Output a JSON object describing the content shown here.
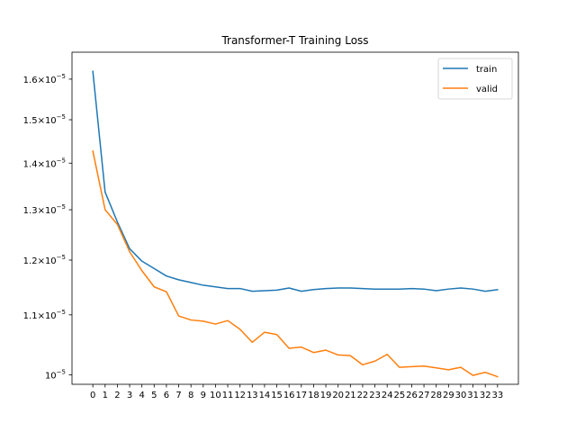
{
  "chart_data": {
    "type": "line",
    "title": "Transformer-T Training Loss",
    "xlabel": "",
    "ylabel": "",
    "yscale": "log",
    "ylim": [
      9.85e-06,
      1.67e-05
    ],
    "xlim": [
      -1.7,
      34.7
    ],
    "grid": false,
    "legend_position": "top-right",
    "x": [
      0,
      1,
      2,
      3,
      4,
      5,
      6,
      7,
      8,
      9,
      10,
      11,
      12,
      13,
      14,
      15,
      16,
      17,
      18,
      19,
      20,
      21,
      22,
      23,
      24,
      25,
      26,
      27,
      28,
      29,
      30,
      31,
      32,
      33
    ],
    "x_tick_labels": [
      "0",
      "1",
      "2",
      "3",
      "4",
      "5",
      "6",
      "7",
      "8",
      "9",
      "10",
      "11",
      "12",
      "13",
      "14",
      "15",
      "16",
      "17",
      "18",
      "19",
      "20",
      "21",
      "22",
      "23",
      "24",
      "25",
      "26",
      "27",
      "28",
      "29",
      "30",
      "31",
      "32",
      "33"
    ],
    "y_ticks": [
      {
        "value": 1.6e-05,
        "mantissa": "1.6",
        "base": "×10",
        "exponent": "−5"
      },
      {
        "value": 1.5e-05,
        "mantissa": "1.5",
        "base": "×10",
        "exponent": "−5"
      },
      {
        "value": 1.4e-05,
        "mantissa": "1.4",
        "base": "×10",
        "exponent": "−5"
      },
      {
        "value": 1.3e-05,
        "mantissa": "1.3",
        "base": "×10",
        "exponent": "−5"
      },
      {
        "value": 1.2e-05,
        "mantissa": "1.2",
        "base": "×10",
        "exponent": "−5"
      },
      {
        "value": 1.1e-05,
        "mantissa": "1.1",
        "base": "×10",
        "exponent": "−5"
      },
      {
        "value": 1e-05,
        "mantissa": "",
        "base": "10",
        "exponent": "−5"
      }
    ],
    "series": [
      {
        "name": "train",
        "color": "#1f77b4",
        "values": [
          1.62e-05,
          1.337e-05,
          1.275e-05,
          1.222e-05,
          1.198e-05,
          1.184e-05,
          1.17e-05,
          1.163e-05,
          1.158e-05,
          1.153e-05,
          1.15e-05,
          1.147e-05,
          1.147e-05,
          1.142e-05,
          1.143e-05,
          1.144e-05,
          1.148e-05,
          1.142e-05,
          1.145e-05,
          1.147e-05,
          1.148e-05,
          1.148e-05,
          1.147e-05,
          1.146e-05,
          1.146e-05,
          1.146e-05,
          1.147e-05,
          1.146e-05,
          1.143e-05,
          1.146e-05,
          1.148e-05,
          1.146e-05,
          1.142e-05,
          1.145e-05
        ]
      },
      {
        "name": "valid",
        "color": "#ff7f0e",
        "values": [
          1.427e-05,
          1.3e-05,
          1.27e-05,
          1.216e-05,
          1.18e-05,
          1.15e-05,
          1.141e-05,
          1.098e-05,
          1.091e-05,
          1.089e-05,
          1.084e-05,
          1.09e-05,
          1.075e-05,
          1.053e-05,
          1.07e-05,
          1.066e-05,
          1.043e-05,
          1.045e-05,
          1.036e-05,
          1.04e-05,
          1.032e-05,
          1.031e-05,
          1.016e-05,
          1.022e-05,
          1.033e-05,
          1.012e-05,
          1.013e-05,
          1.014e-05,
          1.011e-05,
          1.008e-05,
          1.012e-05,
          9.99e-06,
          1.004e-05,
          9.97e-06
        ]
      }
    ]
  }
}
